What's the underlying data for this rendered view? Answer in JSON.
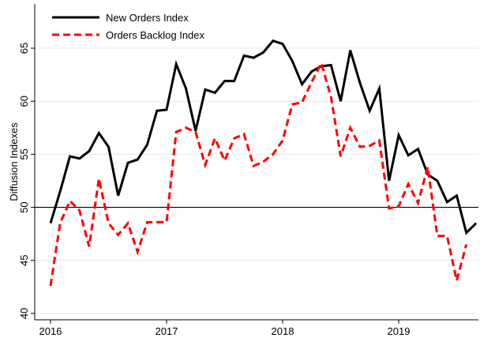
{
  "chart_data": {
    "type": "line",
    "ylabel": "Diffusion Indexes",
    "x": [
      2016,
      2016.083,
      2016.167,
      2016.25,
      2016.333,
      2016.417,
      2016.5,
      2016.583,
      2016.667,
      2016.75,
      2016.833,
      2016.917,
      2017,
      2017.083,
      2017.167,
      2017.25,
      2017.333,
      2017.417,
      2017.5,
      2017.583,
      2017.667,
      2017.75,
      2017.833,
      2017.917,
      2018,
      2018.083,
      2018.167,
      2018.25,
      2018.333,
      2018.417,
      2018.5,
      2018.583,
      2018.667,
      2018.75,
      2018.833,
      2018.917,
      2019,
      2019.083,
      2019.167,
      2019.25,
      2019.333,
      2019.417,
      2019.5,
      2019.583,
      2019.667
    ],
    "series": [
      {
        "name": "New Orders Index",
        "color": "#000000",
        "dash": false,
        "values": [
          48.5,
          51.5,
          54.8,
          54.6,
          55.3,
          57.0,
          55.7,
          51.1,
          54.2,
          54.5,
          55.9,
          59.1,
          59.2,
          63.5,
          61.2,
          57.2,
          61.1,
          60.8,
          61.9,
          61.9,
          64.3,
          64.1,
          64.6,
          65.7,
          65.4,
          63.8,
          61.6,
          62.8,
          63.3,
          63.4,
          60.0,
          64.8,
          61.7,
          59.1,
          61.2,
          52.5,
          56.8,
          54.9,
          55.5,
          53.1,
          52.5,
          50.5,
          51.1,
          47.6,
          48.5
        ]
      },
      {
        "name": "Orders Backlog Index",
        "color": "#ff0000",
        "dash": true,
        "values": [
          42.6,
          48.5,
          50.6,
          49.7,
          46.3,
          52.7,
          48.5,
          47.4,
          48.5,
          45.8,
          48.6,
          48.6,
          48.6,
          57.1,
          57.5,
          57.1,
          54.0,
          56.5,
          54.4,
          56.5,
          56.9,
          53.9,
          54.3,
          55.0,
          56.3,
          59.7,
          59.9,
          61.8,
          63.6,
          60.4,
          54.8,
          57.5,
          55.7,
          55.8,
          56.3,
          49.9,
          50.1,
          52.2,
          50.4,
          53.8,
          47.3,
          47.3,
          43.1,
          46.5,
          null
        ]
      }
    ],
    "hline": 50,
    "xlim": [
      2015.864,
      2019.687
    ],
    "xticks": [
      2016,
      2017,
      2018,
      2019
    ],
    "ylim": [
      39.4,
      69.17
    ],
    "yticks": [
      40,
      45,
      50,
      55,
      60,
      65
    ],
    "grid": true,
    "legend": "upper left"
  }
}
